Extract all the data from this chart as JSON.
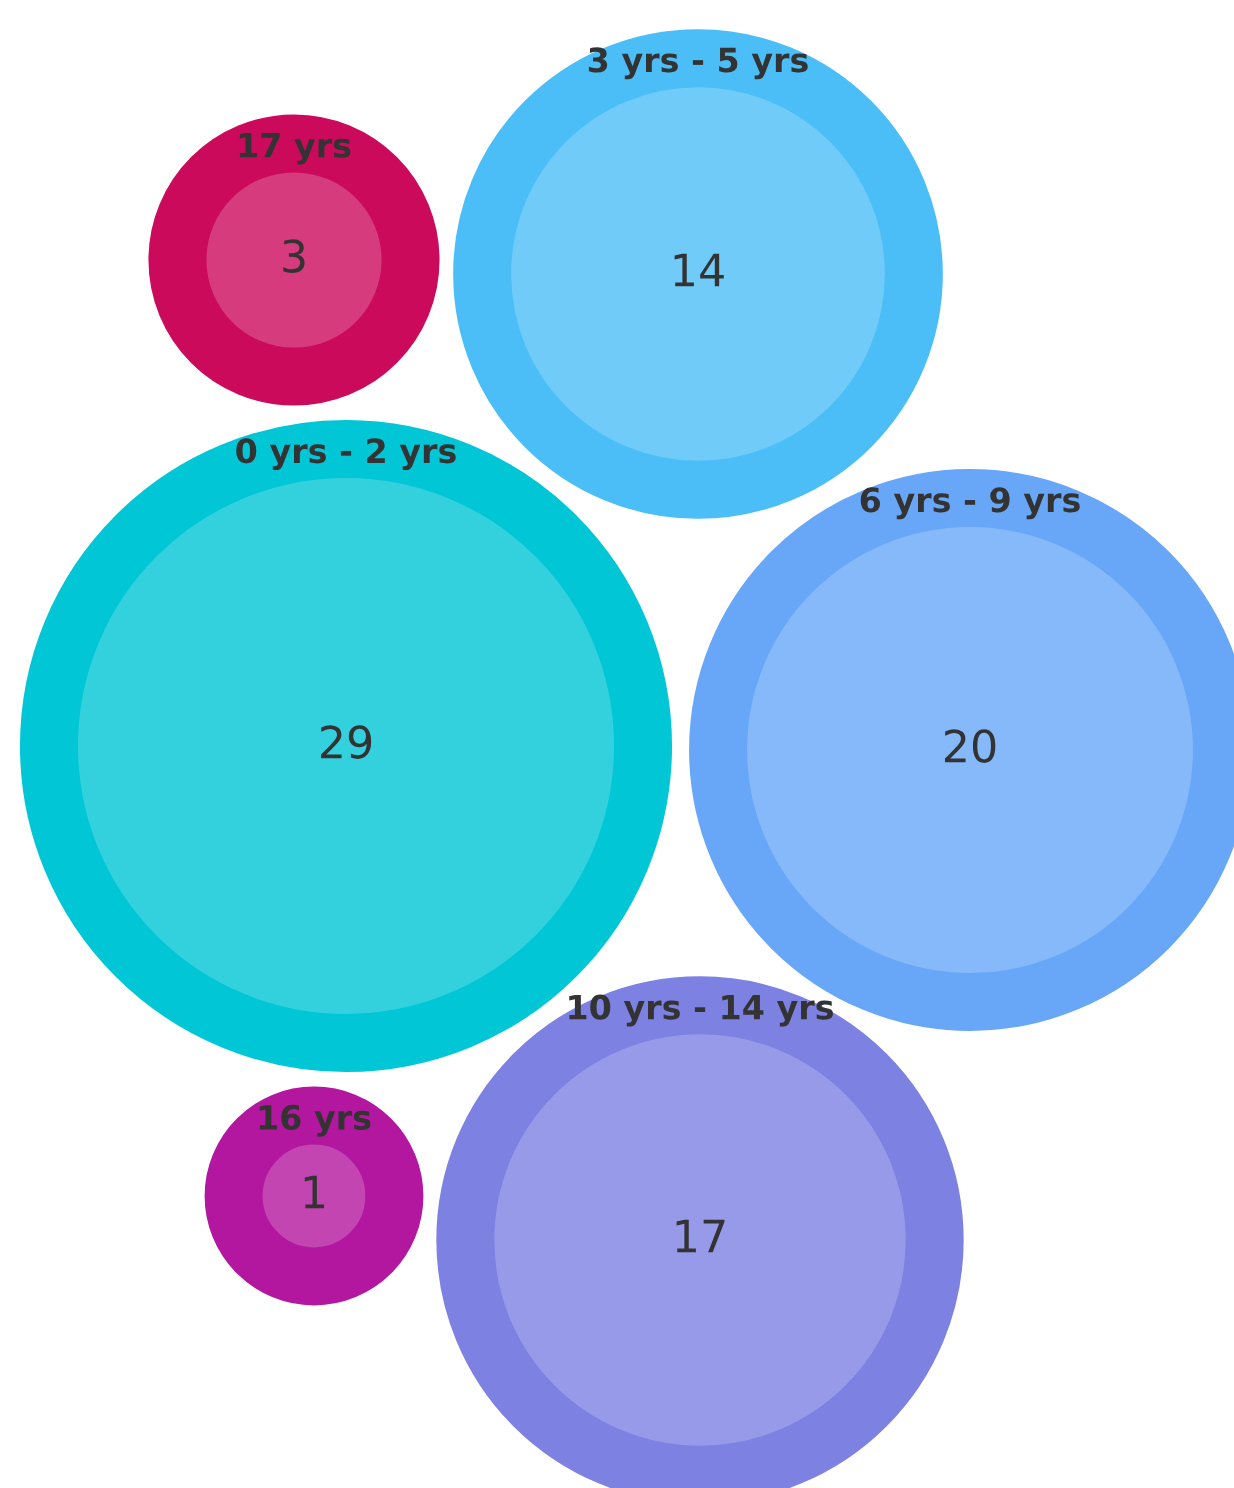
{
  "chart_data": {
    "type": "other",
    "categories": [
      "17 yrs",
      "3 yrs - 5 yrs",
      "0 yrs - 2 yrs",
      "6 yrs - 9 yrs",
      "16 yrs",
      "10 yrs - 14 yrs"
    ],
    "values": [
      3,
      14,
      29,
      20,
      1,
      17
    ],
    "colors": [
      "#d63b7d",
      "#70cbf9",
      "#33d1de",
      "#86b9f9",
      "#c245b2",
      "#969ae8"
    ],
    "data_labels": true
  }
}
